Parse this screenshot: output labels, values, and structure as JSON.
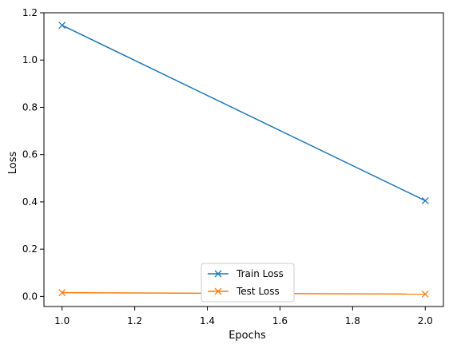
{
  "chart_data": {
    "type": "line",
    "title": "",
    "xlabel": "Epochs",
    "ylabel": "Loss",
    "x": [
      1.0,
      2.0
    ],
    "xlim": [
      0.95,
      2.05
    ],
    "ylim": [
      -0.0426,
      1.2
    ],
    "xticks": [
      1.0,
      1.2,
      1.4,
      1.6,
      1.8,
      2.0
    ],
    "yticks": [
      0.0,
      0.2,
      0.4,
      0.6,
      0.8,
      1.0,
      1.2
    ],
    "xtick_labels": [
      "1.0",
      "1.2",
      "1.4",
      "1.6",
      "1.8",
      "2.0"
    ],
    "ytick_labels": [
      "0.0",
      "0.2",
      "0.4",
      "0.6",
      "0.8",
      "1.0",
      "1.2"
    ],
    "grid": false,
    "legend_position": "lower center",
    "series": [
      {
        "name": "Train Loss",
        "values": [
          1.147,
          0.405
        ],
        "color": "#1f77b4",
        "marker": "x"
      },
      {
        "name": "Test Loss",
        "values": [
          0.016,
          0.01
        ],
        "color": "#ff7f0e",
        "marker": "x"
      }
    ]
  }
}
